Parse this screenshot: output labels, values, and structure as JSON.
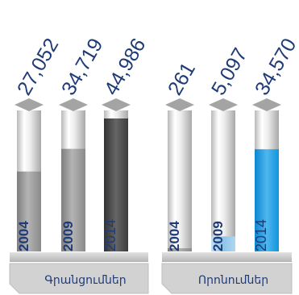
{
  "chart_data": [
    {
      "type": "bar",
      "label": "Գրանցումներ",
      "categories": [
        "2004",
        "2009",
        "2014"
      ],
      "values": [
        27052,
        34719,
        44986
      ],
      "value_labels": [
        "27,052",
        "34,719",
        "44,986"
      ],
      "colors": [
        "#9a9a9a",
        "#9a9a9a",
        "#4a4a4a"
      ]
    },
    {
      "type": "bar",
      "label": "Որոնումներ",
      "categories": [
        "2004",
        "2009",
        "2014"
      ],
      "values": [
        261,
        5097,
        34570
      ],
      "value_labels": [
        "261",
        "5,097",
        "34,570"
      ],
      "colors": [
        "#9a9a9a",
        "#8ec4ea",
        "#1e9be0"
      ]
    }
  ]
}
